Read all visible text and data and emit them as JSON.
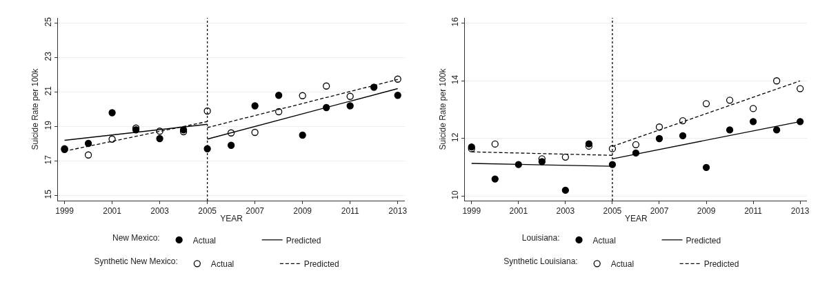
{
  "chart_data": [
    {
      "type": "scatter",
      "ylabel": "Suicide Rate per 100k",
      "xlabel": "YEAR",
      "xlim": [
        1998.72,
        2013.3
      ],
      "xticks": [
        1999,
        2001,
        2003,
        2005,
        2007,
        2009,
        2011,
        2013
      ],
      "ylim": [
        14.7,
        25.3
      ],
      "yticks": [
        15,
        17,
        19,
        21,
        23,
        25
      ],
      "grid": "y",
      "legend": "bottom",
      "legend_title": [
        "New Mexico:",
        "Synthetic New Mexico:"
      ],
      "x": [
        1999,
        2000,
        2001,
        2002,
        2003,
        2004,
        2005,
        2006,
        2007,
        2008,
        2009,
        2010,
        2011,
        2012,
        2013
      ],
      "ref_lines": [
        {
          "axis": "x",
          "value": 2005,
          "color": "#000000",
          "line_style": "dotted"
        }
      ],
      "series": [
        {
          "name": "Actual",
          "marker": "circle",
          "color": "#000000",
          "values": [
            17.71,
            18.02,
            19.8,
            18.81,
            18.3,
            18.81,
            17.71,
            17.91,
            20.2,
            20.81,
            18.5,
            20.1,
            20.2,
            21.28,
            20.81
          ]
        },
        {
          "name": "Predicted",
          "type": "line",
          "line_style": "solid",
          "color": "#000000",
          "x": [
            1999,
            2005
          ],
          "values": [
            18.2,
            19.13
          ]
        },
        {
          "type": "line",
          "line_style": "solid",
          "color": "#000000",
          "x": [
            2005,
            2013
          ],
          "values": [
            18.27,
            21.2
          ]
        },
        {
          "name": "Actual",
          "marker": "circle",
          "color": "#000000",
          "values": [
            17.67,
            17.35,
            18.27,
            18.91,
            18.73,
            18.7,
            19.9,
            18.63,
            18.66,
            19.86,
            20.79,
            21.35,
            20.75,
            null,
            21.75
          ]
        },
        {
          "name": "Predicted",
          "type": "line",
          "line_style": "dashed",
          "color": "#000000",
          "x": [
            1999,
            2005
          ],
          "values": [
            17.57,
            19.29
          ]
        },
        {
          "type": "line",
          "line_style": "dashed",
          "color": "#000000",
          "x": [
            2005,
            2013
          ],
          "values": [
            18.94,
            21.73
          ]
        }
      ]
    },
    {
      "type": "scatter",
      "ylabel": "Suicide Rate per 100k",
      "xlabel": "YEAR",
      "xlim": [
        1998.72,
        2013.3
      ],
      "xticks": [
        1999,
        2001,
        2003,
        2005,
        2007,
        2009,
        2011,
        2013
      ],
      "ylim": [
        9.85,
        16.18
      ],
      "yticks": [
        10,
        12,
        14,
        16
      ],
      "grid": "y",
      "legend": "bottom",
      "legend_title": [
        "Louisiana:",
        "Synthetic Louisiana:"
      ],
      "x": [
        1999,
        2000,
        2001,
        2002,
        2003,
        2004,
        2005,
        2006,
        2007,
        2008,
        2009,
        2010,
        2011,
        2012,
        2013
      ],
      "ref_lines": [
        {
          "axis": "x",
          "value": 2005,
          "color": "#000000",
          "line_style": "dotted"
        }
      ],
      "series": [
        {
          "name": "Actual",
          "marker": "circle",
          "color": "#000000",
          "values": [
            11.71,
            10.6,
            11.1,
            11.2,
            10.21,
            11.82,
            11.1,
            11.5,
            12.0,
            12.1,
            11.0,
            12.3,
            12.59,
            12.3,
            12.59
          ]
        },
        {
          "name": "Predicted",
          "type": "line",
          "line_style": "solid",
          "color": "#000000",
          "x": [
            1999,
            2005
          ],
          "values": [
            11.14,
            11.04
          ]
        },
        {
          "type": "line",
          "line_style": "solid",
          "color": "#000000",
          "x": [
            2005,
            2013
          ],
          "values": [
            11.3,
            12.59
          ]
        },
        {
          "name": "Actual",
          "marker": "circle",
          "color": "#000000",
          "values": [
            11.65,
            11.81,
            null,
            11.3,
            11.36,
            11.74,
            11.65,
            11.79,
            12.4,
            12.62,
            13.21,
            13.33,
            13.04,
            14.0,
            13.73
          ]
        },
        {
          "name": "Predicted",
          "type": "line",
          "line_style": "dashed",
          "color": "#000000",
          "x": [
            1999,
            2005
          ],
          "values": [
            11.54,
            11.42
          ]
        },
        {
          "type": "line",
          "line_style": "dashed",
          "color": "#000000",
          "x": [
            2005,
            2013
          ],
          "values": [
            11.73,
            14.0
          ]
        }
      ]
    }
  ]
}
